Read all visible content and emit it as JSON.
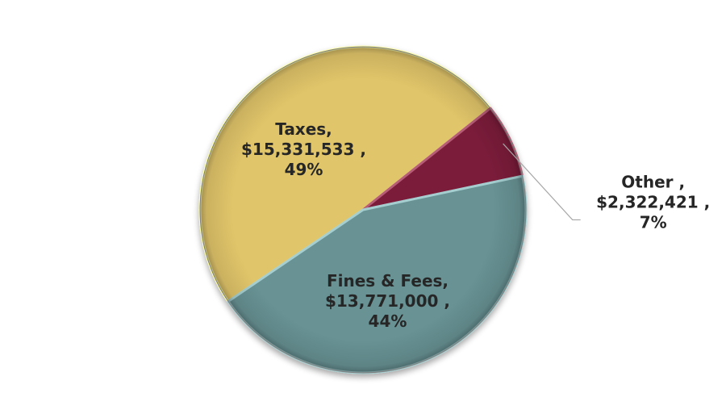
{
  "chart_data": {
    "type": "pie",
    "title": "",
    "slices": [
      {
        "category": "Taxes",
        "value": 15331533,
        "value_label": "$15,331,533",
        "percent": 49,
        "color": "#E1C56A",
        "label_lines": [
          "Taxes,",
          "$15,331,533 ,",
          "49%"
        ]
      },
      {
        "category": "Other",
        "value": 2322421,
        "value_label": "$2,322,421",
        "percent": 7,
        "color": "#7B1F3A",
        "label_lines": [
          "Other ,",
          "$2,322,421 ,",
          "7%"
        ]
      },
      {
        "category": "Fines & Fees",
        "value": 13771000,
        "value_label": "$13,771,000",
        "percent": 44,
        "color": "#689294",
        "label_lines": [
          "Fines & Fees,",
          "$13,771,000 ,",
          "44%"
        ]
      }
    ],
    "legend": "none",
    "data_labels": "category, value, percent"
  }
}
